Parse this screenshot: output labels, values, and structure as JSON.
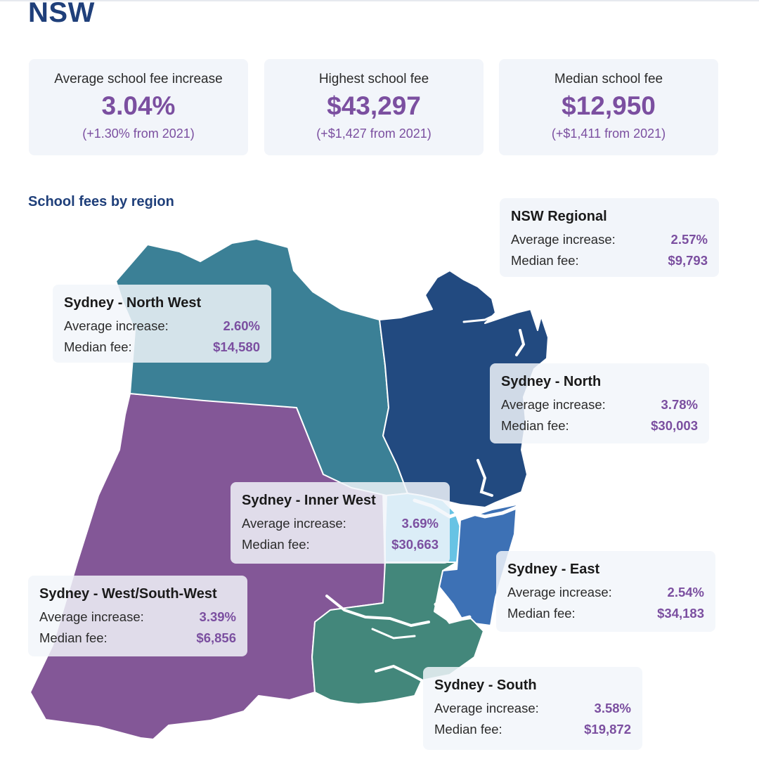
{
  "page": {
    "title": "NSW",
    "section_title": "School fees by region"
  },
  "stats": [
    {
      "label": "Average school fee increase",
      "value": "3.04%",
      "change": "(+1.30% from 2021)"
    },
    {
      "label": "Highest school fee",
      "value": "$43,297",
      "change": "(+$1,427 from 2021)"
    },
    {
      "label": "Median school fee",
      "value": "$12,950",
      "change": "(+$1,411 from 2021)"
    }
  ],
  "colors": {
    "title": "#1f3f7a",
    "accent": "#7b4fa0",
    "north_west": "#3b8096",
    "north": "#224a80",
    "west_south_west": "#835797",
    "inner_west": "#67c3e4",
    "east": "#3d71b5",
    "south": "#43877b"
  },
  "regions": {
    "nsw_regional": {
      "name": "NSW Regional",
      "avg_label": "Average increase:",
      "avg": "2.57%",
      "median_label": "Median fee:",
      "median": "$9,793"
    },
    "north_west": {
      "name": "Sydney - North West",
      "avg_label": "Average increase:",
      "avg": "2.60%",
      "median_label": "Median fee:",
      "median": "$14,580"
    },
    "north": {
      "name": "Sydney - North",
      "avg_label": "Average increase:",
      "avg": "3.78%",
      "median_label": "Median fee:",
      "median": "$30,003"
    },
    "inner_west": {
      "name": "Sydney - Inner West",
      "avg_label": "Average increase:",
      "avg": "3.69%",
      "median_label": "Median fee:",
      "median": "$30,663"
    },
    "west_south_west": {
      "name": "Sydney - West/South-West",
      "avg_label": "Average increase:",
      "avg": "3.39%",
      "median_label": "Median fee:",
      "median": "$6,856"
    },
    "east": {
      "name": "Sydney - East",
      "avg_label": "Average increase:",
      "avg": "2.54%",
      "median_label": "Median fee:",
      "median": "$34,183"
    },
    "south": {
      "name": "Sydney - South",
      "avg_label": "Average increase:",
      "avg": "3.58%",
      "median_label": "Median fee:",
      "median": "$19,872"
    }
  }
}
